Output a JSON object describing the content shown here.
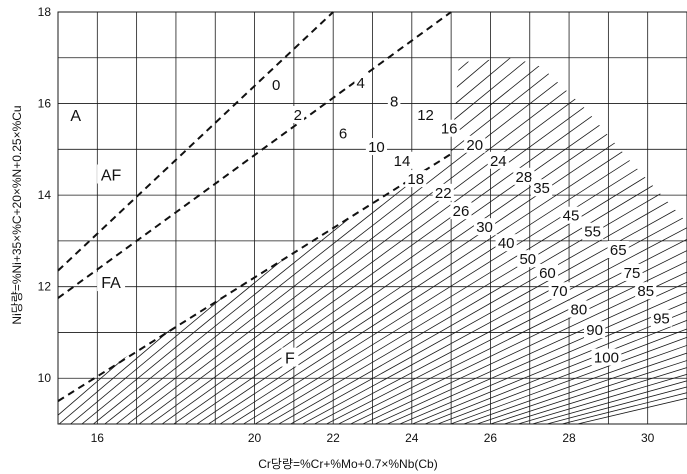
{
  "diagram": {
    "type": "schaeffler-delong",
    "x_axis": {
      "label": "Cr당량=%Cr+%Mo+0.7×%Nb(Cb)",
      "range": [
        15,
        31
      ],
      "ticks": [
        "16",
        "20",
        "22",
        "24",
        "26",
        "28",
        "30"
      ]
    },
    "y_axis": {
      "label": "Ni당량=%Ni+35×%C+20×%N+0.25×%Cu",
      "range": [
        9,
        18
      ],
      "ticks": [
        "10",
        "12",
        "14",
        "16",
        "18"
      ]
    },
    "grid": true,
    "regions": [
      {
        "key": "a",
        "label": "A",
        "x": 15.45,
        "y": 15.75
      },
      {
        "key": "af",
        "label": "AF",
        "x": 16.35,
        "y": 14.45
      },
      {
        "key": "fa",
        "label": "FA",
        "x": 16.35,
        "y": 12.1
      },
      {
        "key": "f",
        "label": "F",
        "x": 20.9,
        "y": 10.45
      }
    ],
    "boundaries": [
      {
        "key": "a-af",
        "style": "dashed",
        "points": [
          [
            15,
            12.35
          ],
          [
            22,
            18
          ]
        ]
      },
      {
        "key": "af-fa",
        "style": "dashed",
        "points": [
          [
            15,
            11.75
          ],
          [
            25,
            18
          ]
        ]
      },
      {
        "key": "fa-f",
        "style": "dashed",
        "points": [
          [
            15,
            9.5
          ],
          [
            25,
            14.9
          ]
        ]
      }
    ],
    "ferrite_numbers": [
      {
        "label": "0",
        "x": 20.55,
        "y": 16.4
      },
      {
        "label": "2",
        "x": 21.1,
        "y": 15.75
      },
      {
        "label": "4",
        "x": 22.7,
        "y": 16.45
      },
      {
        "label": "6",
        "x": 22.25,
        "y": 15.35
      },
      {
        "label": "8",
        "x": 23.55,
        "y": 16.05
      },
      {
        "label": "10",
        "x": 23.1,
        "y": 15.05
      },
      {
        "label": "12",
        "x": 24.35,
        "y": 15.75
      },
      {
        "label": "14",
        "x": 23.75,
        "y": 14.75
      },
      {
        "label": "16",
        "x": 24.95,
        "y": 15.45
      },
      {
        "label": "18",
        "x": 24.1,
        "y": 14.35
      },
      {
        "label": "20",
        "x": 25.6,
        "y": 15.1
      },
      {
        "label": "22",
        "x": 24.8,
        "y": 14.05
      },
      {
        "label": "24",
        "x": 26.2,
        "y": 14.75
      },
      {
        "label": "26",
        "x": 25.25,
        "y": 13.65
      },
      {
        "label": "28",
        "x": 26.85,
        "y": 14.4
      },
      {
        "label": "30",
        "x": 25.85,
        "y": 13.3
      },
      {
        "label": "35",
        "x": 27.3,
        "y": 14.15
      },
      {
        "label": "40",
        "x": 26.4,
        "y": 12.95
      },
      {
        "label": "45",
        "x": 28.05,
        "y": 13.55
      },
      {
        "label": "50",
        "x": 26.95,
        "y": 12.6
      },
      {
        "label": "55",
        "x": 28.6,
        "y": 13.2
      },
      {
        "label": "60",
        "x": 27.45,
        "y": 12.3
      },
      {
        "label": "65",
        "x": 29.25,
        "y": 12.8
      },
      {
        "label": "70",
        "x": 27.75,
        "y": 11.9
      },
      {
        "label": "75",
        "x": 29.6,
        "y": 12.3
      },
      {
        "label": "80",
        "x": 28.25,
        "y": 11.5
      },
      {
        "label": "85",
        "x": 29.95,
        "y": 11.9
      },
      {
        "label": "90",
        "x": 28.65,
        "y": 11.05
      },
      {
        "label": "95",
        "x": 30.35,
        "y": 11.3
      },
      {
        "label": "100",
        "x": 28.95,
        "y": 10.45
      }
    ]
  }
}
